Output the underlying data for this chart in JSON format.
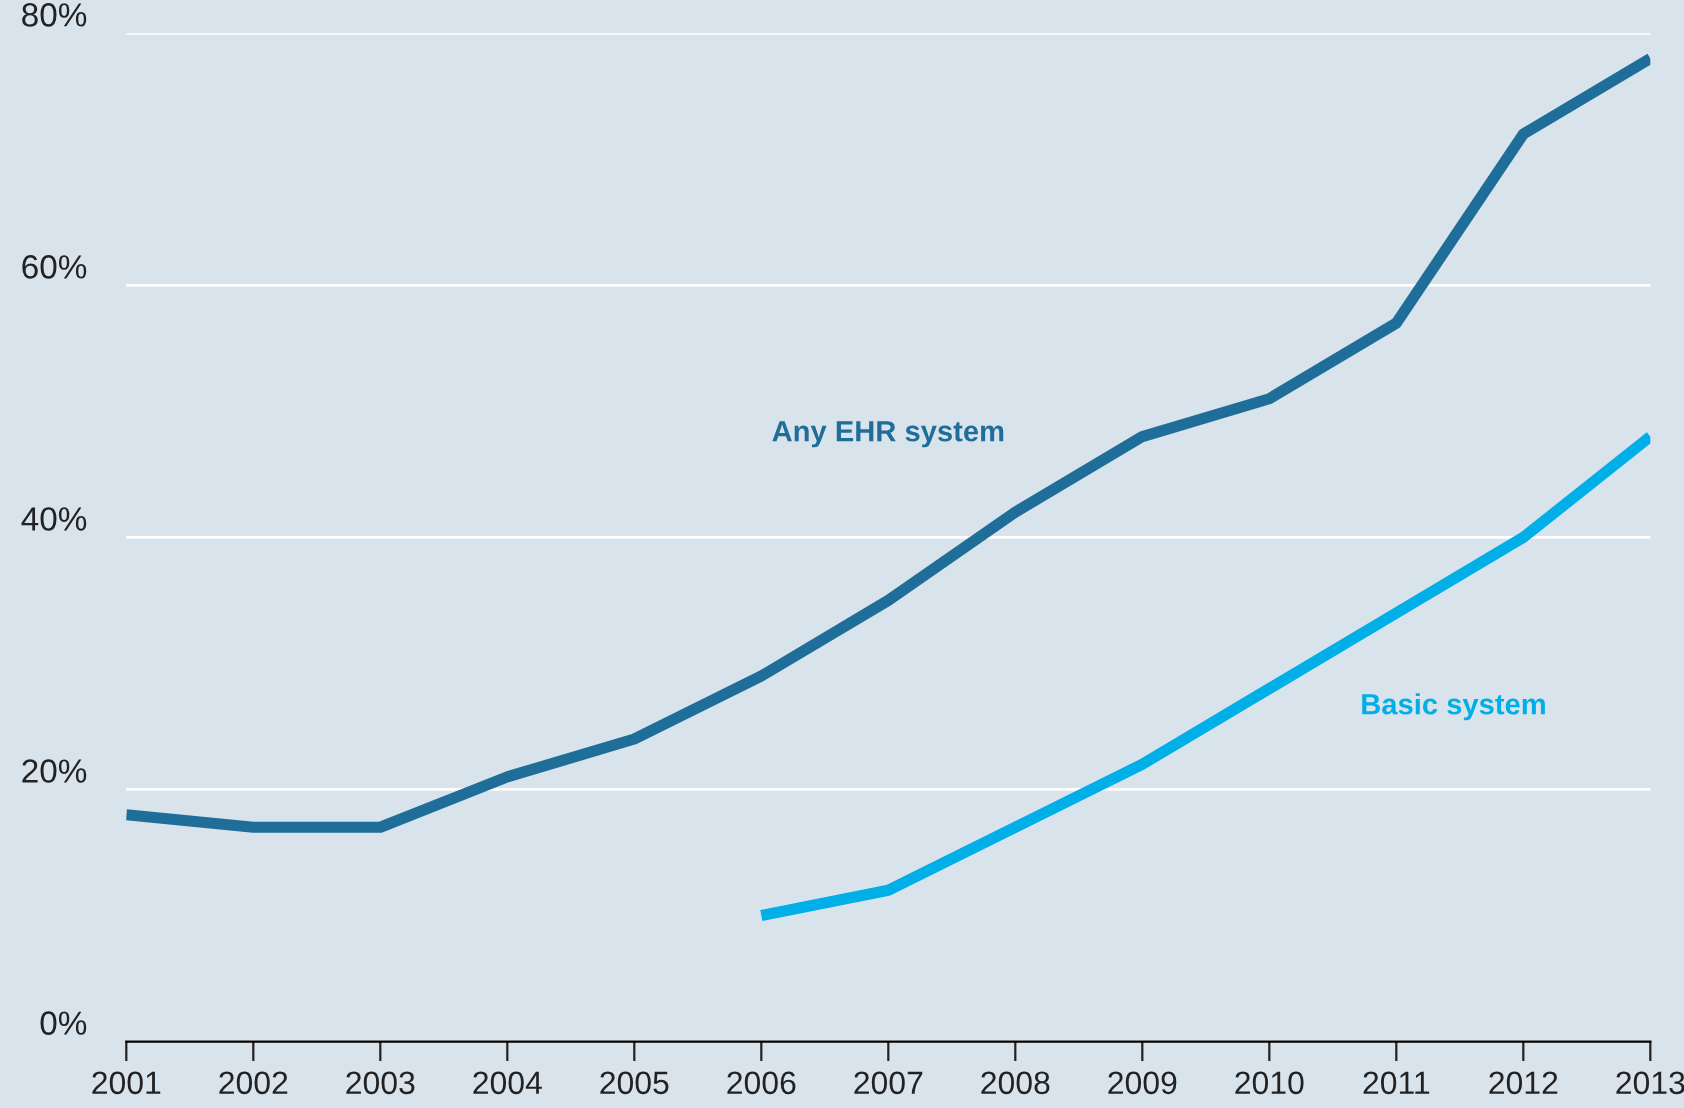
{
  "chart_data": {
    "type": "line",
    "x": [
      2001,
      2002,
      2003,
      2004,
      2005,
      2006,
      2007,
      2008,
      2009,
      2010,
      2011,
      2012,
      2013
    ],
    "series": [
      {
        "name": "Any EHR system",
        "color": "#1f6e99",
        "values": [
          18,
          17,
          17,
          21,
          24,
          29,
          35,
          42,
          48,
          51,
          57,
          72,
          78
        ]
      },
      {
        "name": "Basic system",
        "color": "#00aee8",
        "values": [
          null,
          null,
          null,
          null,
          null,
          10,
          12,
          17,
          22,
          28,
          34,
          40,
          48
        ]
      }
    ],
    "xlim": [
      2001,
      2013
    ],
    "xticks": [
      2001,
      2002,
      2003,
      2004,
      2005,
      2006,
      2007,
      2008,
      2009,
      2010,
      2011,
      2012,
      2013
    ],
    "ylim": [
      0,
      80
    ],
    "yticks": [
      {
        "value": 0,
        "label": "0%"
      },
      {
        "value": 20,
        "label": "20%"
      },
      {
        "value": 40,
        "label": "40%"
      },
      {
        "value": 60,
        "label": "60%"
      },
      {
        "value": 80,
        "label": "80%"
      }
    ],
    "grid": "y",
    "legend": false,
    "marker": "none",
    "line_style": "solid"
  }
}
